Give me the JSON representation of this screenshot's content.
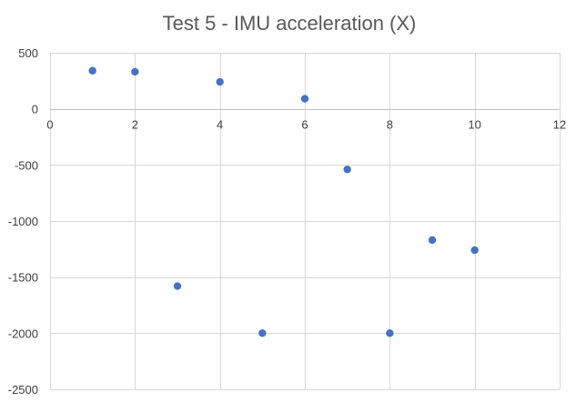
{
  "chart_data": {
    "type": "scatter",
    "title": "Test 5 - IMU acceleration (X)",
    "xlabel": "",
    "ylabel": "",
    "xlim": [
      0,
      12
    ],
    "ylim": [
      -2500,
      500
    ],
    "x_ticks": [
      0,
      2,
      4,
      6,
      8,
      10,
      12
    ],
    "y_ticks": [
      500,
      0,
      -500,
      -1000,
      -1500,
      -2000,
      -2500
    ],
    "grid": true,
    "legend": "none",
    "marker_color": "#4472C4",
    "series": [
      {
        "x": [
          1,
          2,
          3,
          4,
          5,
          6,
          7,
          8,
          9,
          10
        ],
        "y": [
          340,
          330,
          -1580,
          240,
          -2000,
          90,
          -540,
          -2000,
          -1170,
          -1260
        ]
      }
    ]
  }
}
